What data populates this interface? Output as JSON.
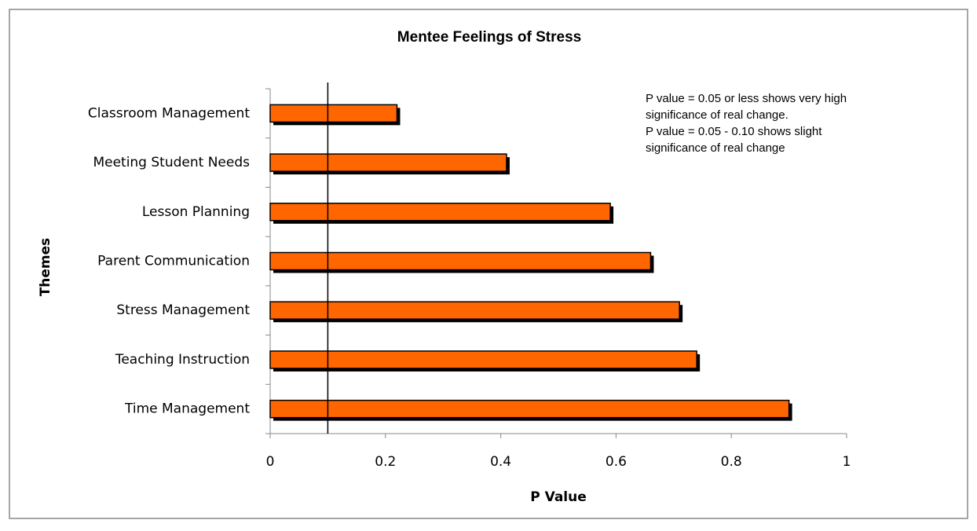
{
  "chart_data": {
    "type": "bar",
    "orientation": "horizontal",
    "title": "Mentee Feelings of Stress",
    "x_label": "P Value",
    "y_label": "Themes",
    "categories": [
      "Classroom Management",
      "Meeting Student Needs",
      "Lesson Planning",
      "Parent Communication",
      "Stress Management",
      "Teaching Instruction",
      "Time Management"
    ],
    "values": [
      0.22,
      0.41,
      0.59,
      0.66,
      0.71,
      0.74,
      0.9
    ],
    "color": "#ff6600",
    "xlim": [
      0,
      1
    ],
    "xticks": [
      0,
      0.2,
      0.4,
      0.6,
      0.8,
      1
    ],
    "reference_line": 0.1,
    "annotation": [
      "P value = 0.05 or less shows very high",
      "significance of real change.",
      "P value = 0.05 - 0.10 shows slight",
      "significance of real change"
    ]
  }
}
